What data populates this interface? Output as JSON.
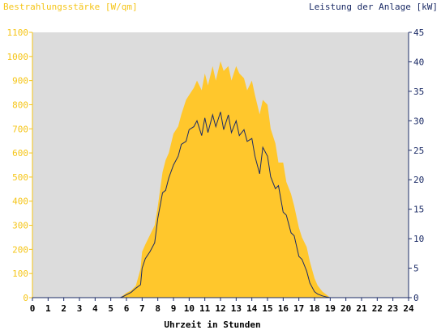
{
  "chart_data": {
    "type": "area",
    "left_axis_label": "Bestrahlungsstärke [W/qm]",
    "right_axis_label": "Leistung der Anlage [kW]",
    "xlabel": "Uhrzeit in Stunden",
    "xlim": [
      0,
      24
    ],
    "ylim_left": [
      0,
      1100
    ],
    "ylim_right": [
      0,
      45
    ],
    "x_ticks": [
      "0",
      "1",
      "2",
      "3",
      "4",
      "5",
      "6",
      "7",
      "8",
      "9",
      "10",
      "11",
      "12",
      "13",
      "14",
      "15",
      "16",
      "17",
      "18",
      "19",
      "20",
      "21",
      "22",
      "23",
      "24"
    ],
    "y_left_ticks": [
      "0",
      "100",
      "200",
      "300",
      "400",
      "500",
      "600",
      "700",
      "800",
      "900",
      "1000",
      "1100"
    ],
    "y_right_ticks": [
      "0",
      "5",
      "10",
      "15",
      "20",
      "25",
      "30",
      "35",
      "40",
      "45"
    ],
    "grid": false,
    "colors": {
      "plot_background": "#dcdcdc",
      "irradiance_fill": "#ffc72c",
      "power_line": "#1b2b66",
      "left_axis": "#f5c518",
      "right_axis": "#1b2b66"
    },
    "series": [
      {
        "name": "Bestrahlungsstärke [W/qm]",
        "axis": "left",
        "x": [
          0,
          5.6,
          5.8,
          6.0,
          6.3,
          6.6,
          6.9,
          7.0,
          7.2,
          7.5,
          7.8,
          8.0,
          8.3,
          8.5,
          8.7,
          9.0,
          9.3,
          9.5,
          9.8,
          10.0,
          10.3,
          10.5,
          10.8,
          11.0,
          11.2,
          11.5,
          11.7,
          12.0,
          12.2,
          12.5,
          12.7,
          13.0,
          13.2,
          13.5,
          13.7,
          14.0,
          14.2,
          14.5,
          14.7,
          15.0,
          15.2,
          15.5,
          15.7,
          16.0,
          16.2,
          16.5,
          16.7,
          17.0,
          17.2,
          17.5,
          17.7,
          18.0,
          18.2,
          18.5,
          18.8,
          19.0,
          24
        ],
        "y": [
          0,
          0,
          10,
          20,
          30,
          50,
          120,
          190,
          220,
          260,
          300,
          380,
          520,
          570,
          600,
          680,
          710,
          760,
          820,
          840,
          870,
          900,
          860,
          930,
          880,
          960,
          900,
          980,
          940,
          960,
          900,
          960,
          930,
          910,
          860,
          900,
          840,
          760,
          820,
          800,
          700,
          640,
          560,
          560,
          480,
          430,
          380,
          290,
          250,
          210,
          150,
          80,
          50,
          25,
          10,
          0,
          0
        ]
      },
      {
        "name": "Leistung der Anlage [kW]",
        "axis": "right",
        "x": [
          0,
          5.6,
          5.8,
          6.0,
          6.3,
          6.6,
          6.9,
          7.0,
          7.2,
          7.5,
          7.8,
          8.0,
          8.3,
          8.5,
          8.7,
          9.0,
          9.3,
          9.5,
          9.8,
          10.0,
          10.3,
          10.5,
          10.8,
          11.0,
          11.2,
          11.5,
          11.7,
          12.0,
          12.2,
          12.5,
          12.7,
          13.0,
          13.2,
          13.5,
          13.7,
          14.0,
          14.2,
          14.5,
          14.7,
          15.0,
          15.2,
          15.5,
          15.7,
          16.0,
          16.2,
          16.5,
          16.7,
          17.0,
          17.2,
          17.5,
          17.7,
          18.0,
          18.2,
          18.5,
          18.8,
          19.0,
          24
        ],
        "y": [
          0,
          0,
          0.2,
          0.5,
          0.9,
          1.6,
          2.2,
          5.0,
          6.6,
          7.8,
          9.3,
          13.5,
          17.8,
          18.2,
          20.3,
          22.5,
          24.0,
          26.0,
          26.5,
          28.5,
          29.0,
          30.0,
          27.5,
          30.5,
          28.0,
          31.0,
          29.0,
          31.5,
          28.5,
          31.0,
          28.0,
          30.0,
          27.5,
          28.5,
          26.5,
          27.0,
          24.0,
          21.0,
          25.5,
          24.0,
          20.5,
          18.5,
          19.0,
          14.5,
          14.0,
          11.0,
          10.5,
          7.0,
          6.5,
          4.5,
          2.5,
          1.0,
          0.6,
          0.3,
          0.1,
          0,
          0
        ]
      }
    ]
  }
}
